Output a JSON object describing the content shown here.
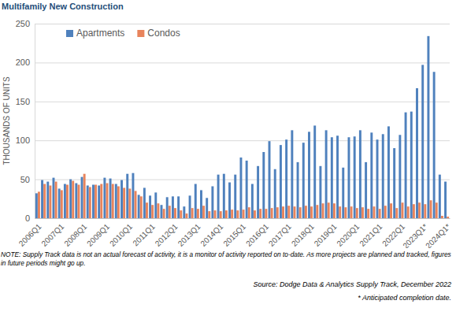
{
  "chart_data": {
    "type": "bar",
    "title": "Multifamily New Construction",
    "y_label": "THOUSANDS OF UNITS",
    "categories": [
      "2006Q1",
      null,
      null,
      null,
      "2007Q1",
      null,
      null,
      null,
      "2008Q1",
      null,
      null,
      null,
      "2009Q1",
      null,
      null,
      null,
      "2010Q1",
      null,
      null,
      null,
      "2011Q1",
      null,
      null,
      null,
      "2012Q1",
      null,
      null,
      null,
      "2013Q1",
      null,
      null,
      null,
      "2014Q1",
      null,
      null,
      null,
      "2015Q1",
      null,
      null,
      null,
      "2016Q1",
      null,
      null,
      null,
      "2017Q1",
      null,
      null,
      null,
      "2018Q1",
      null,
      null,
      null,
      "2019Q1",
      null,
      null,
      null,
      "2020Q1",
      null,
      null,
      null,
      "2021Q1",
      null,
      null,
      null,
      "2022Q1",
      null,
      null,
      null,
      "2023Q1*",
      null,
      null,
      null,
      "2024Q1*"
    ],
    "series": [
      {
        "name": "Apartments",
        "color": "#4f81bd",
        "values": [
          32,
          49,
          47,
          52,
          38,
          44,
          50,
          45,
          53,
          42,
          43,
          42,
          52,
          51,
          44,
          49,
          57,
          58,
          30,
          39,
          29,
          33,
          17,
          27,
          28,
          28,
          15,
          29,
          44,
          36,
          26,
          41,
          56,
          57,
          46,
          56,
          78,
          74,
          44,
          67,
          85,
          99,
          63,
          94,
          101,
          113,
          72,
          97,
          111,
          119,
          67,
          113,
          104,
          106,
          65,
          104,
          105,
          113,
          72,
          110,
          101,
          108,
          118,
          90,
          107,
          136,
          137,
          167,
          197,
          234,
          188,
          56,
          47
        ]
      },
      {
        "name": "Condos",
        "color": "#e8845c",
        "values": [
          34,
          44,
          42,
          47,
          36,
          43,
          48,
          43,
          57,
          40,
          43,
          44,
          45,
          44,
          41,
          39,
          38,
          35,
          28,
          20,
          17,
          19,
          12,
          16,
          13,
          10,
          6,
          13,
          12,
          16,
          9,
          10,
          9,
          10,
          11,
          10,
          11,
          14,
          10,
          12,
          12,
          13,
          14,
          15,
          16,
          15,
          14,
          16,
          15,
          17,
          19,
          20,
          19,
          15,
          14,
          15,
          13,
          14,
          12,
          15,
          12,
          16,
          19,
          13,
          20,
          15,
          18,
          20,
          18,
          23,
          20,
          3,
          2
        ]
      }
    ],
    "ylim": [
      0,
      250
    ],
    "yticks": [
      0,
      50,
      100,
      150,
      200,
      250
    ],
    "grid": true,
    "legend": "top-left",
    "annotations": [
      "NOTE: Supply Track data is not an actual forecast of activity, it is a monitor of activity reported on to-date. As more projects are planned and tracked, figures in future periods might go up.",
      "Source: Dodge Data & Analytics Supply Track, December 2022",
      "* Anticipated completion date."
    ]
  }
}
